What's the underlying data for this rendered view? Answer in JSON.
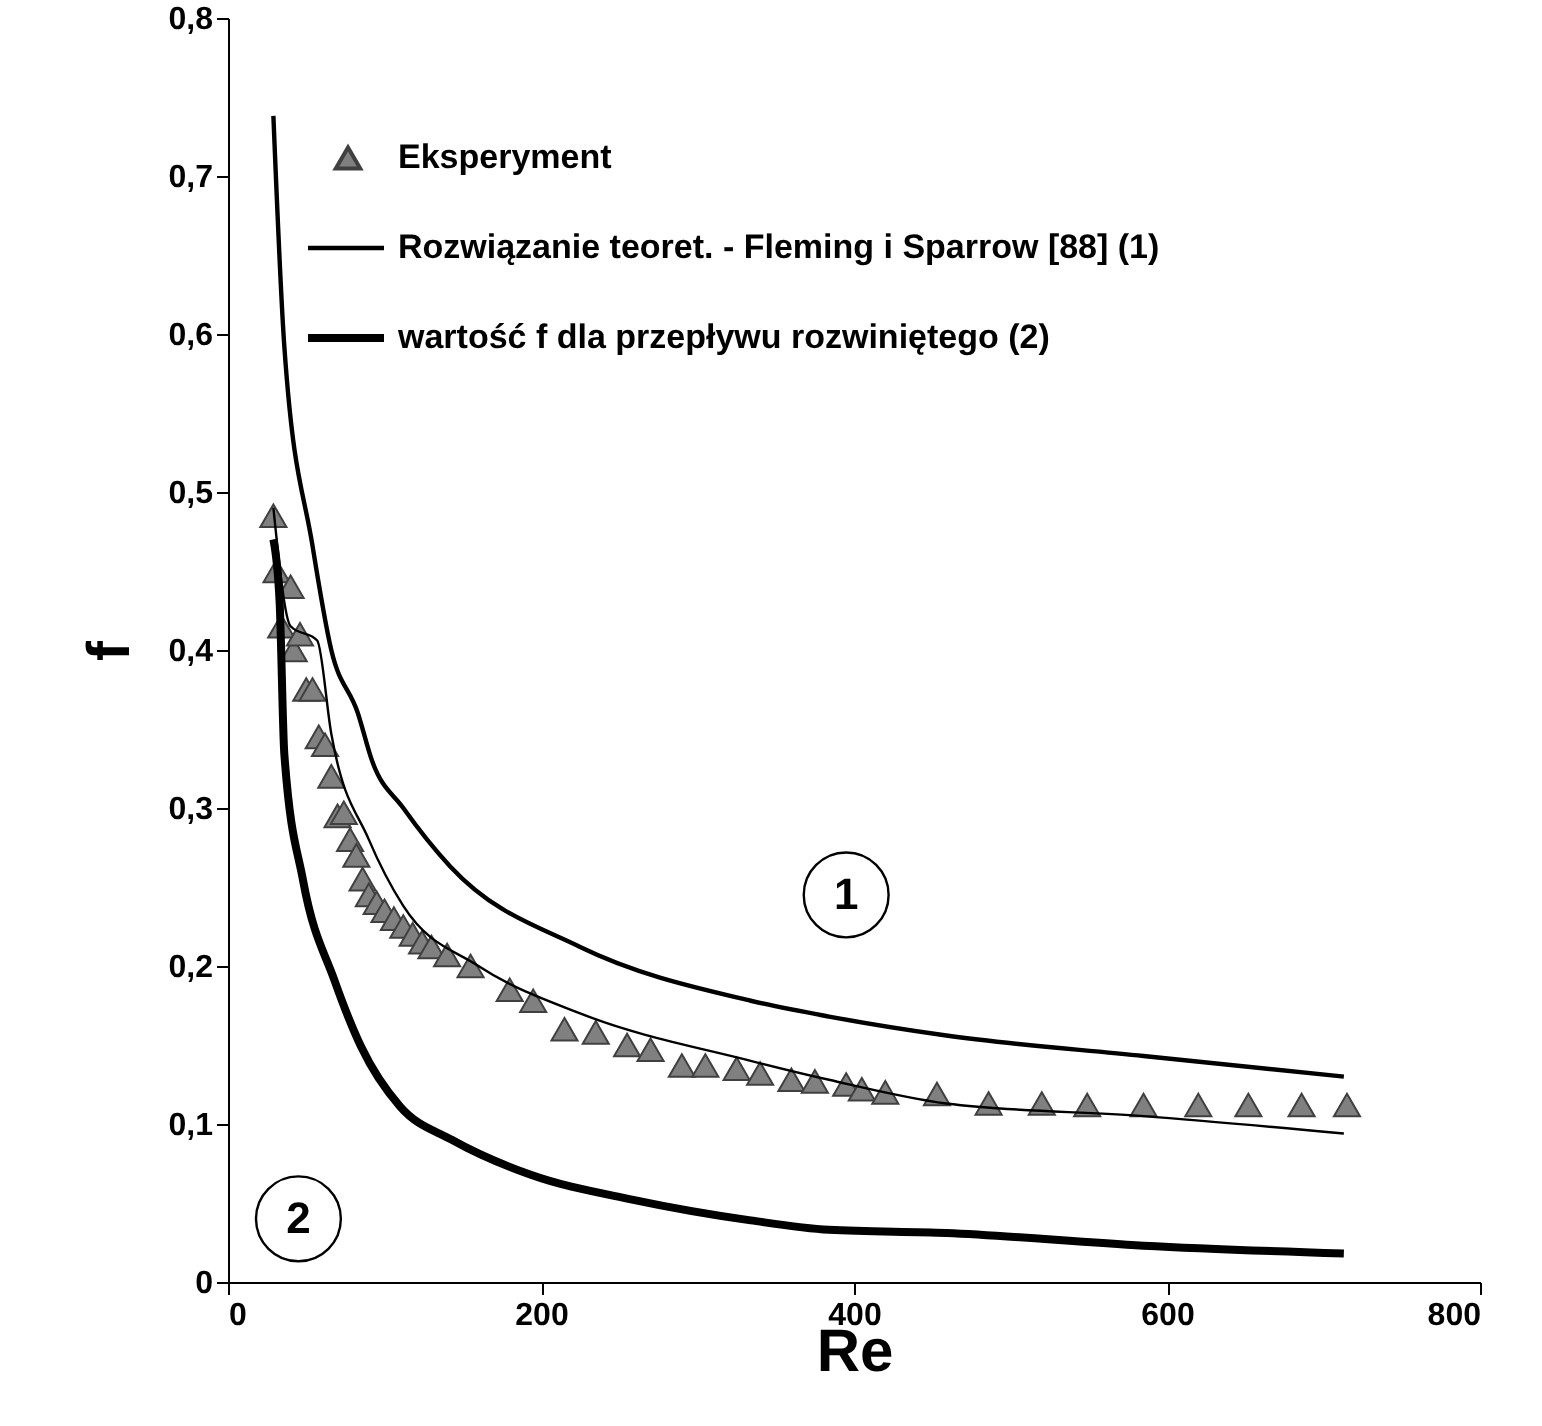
{
  "chart_data": {
    "type": "line",
    "xlabel": "Re",
    "ylabel": "f",
    "xlim": [
      0,
      800
    ],
    "xticks": [
      0,
      200,
      400,
      600,
      800
    ],
    "ylim": [
      0,
      0.8
    ],
    "yticks": [
      0,
      {
        "value": 0.1,
        "label": "0,1"
      },
      {
        "value": 0.2,
        "label": "0,2"
      },
      {
        "value": 0.3,
        "label": "0,3"
      },
      {
        "value": 0.4,
        "label": "0,4"
      },
      {
        "value": 0.5,
        "label": "0,5"
      },
      {
        "value": 0.6,
        "label": "0,6"
      },
      {
        "value": 0.7,
        "label": "0,7"
      },
      {
        "value": 0.8,
        "label": "0,8"
      }
    ],
    "grid": false,
    "legend": "top left",
    "annotations": [
      {
        "text": "1",
        "x": 395,
        "y": 0.245
      },
      {
        "text": "2",
        "x": 45,
        "y": 0.04
      }
    ],
    "series": [
      {
        "name": "Eksperyment",
        "type": "scatter",
        "marker": "triangle",
        "color": "#808080",
        "x": [
          29,
          31,
          34,
          40,
          42,
          46,
          50,
          54,
          58,
          62,
          66,
          70,
          74,
          78,
          82,
          86,
          90,
          95,
          100,
          106,
          112,
          118,
          124,
          130,
          140,
          155,
          180,
          195,
          215,
          235,
          255,
          270,
          290,
          305,
          325,
          340,
          360,
          375,
          395,
          405,
          420,
          453,
          486,
          520,
          549,
          585,
          620,
          652,
          686,
          715
        ],
        "values": [
          0.485,
          0.45,
          0.415,
          0.44,
          0.4,
          0.41,
          0.375,
          0.375,
          0.345,
          0.34,
          0.32,
          0.295,
          0.297,
          0.28,
          0.27,
          0.255,
          0.245,
          0.24,
          0.235,
          0.23,
          0.225,
          0.22,
          0.215,
          0.212,
          0.207,
          0.2,
          0.185,
          0.178,
          0.16,
          0.158,
          0.15,
          0.147,
          0.137,
          0.137,
          0.135,
          0.132,
          0.128,
          0.127,
          0.125,
          0.122,
          0.12,
          0.119,
          0.113,
          0.113,
          0.112,
          0.112,
          0.112,
          0.112,
          0.112,
          0.112
        ]
      },
      {
        "name": "Rozwiązanie teoret. - Fleming i Sparrow [88] (1)",
        "color": "#000000",
        "x": [
          29,
          36,
          54,
          66,
          83,
          92,
          112,
          142,
          225,
          334,
          384,
          459,
          585,
          713
        ],
        "values": [
          0.738,
          0.592,
          0.466,
          0.4,
          0.36,
          0.33,
          0.3,
          0.263,
          0.212,
          0.178,
          0.168,
          0.156,
          0.143,
          0.13
        ]
      },
      {
        "color": "#000000",
        "x": [
          29,
          40,
          57,
          66,
          90,
          112,
          160,
          225,
          334,
          384,
          459,
          585,
          713
        ],
        "values": [
          0.49,
          0.415,
          0.406,
          0.347,
          0.28,
          0.238,
          0.2,
          0.17,
          0.14,
          0.128,
          0.113,
          0.105,
          0.094
        ]
      },
      {
        "name": "wartość f dla  przepływu rozwiniętego (2)",
        "color": "#000000",
        "x": [
          29,
          33,
          36,
          48,
          68,
          85,
          110,
          143,
          193,
          259,
          334,
          384,
          459,
          585,
          713
        ],
        "values": [
          0.47,
          0.43,
          0.334,
          0.254,
          0.191,
          0.149,
          0.111,
          0.09,
          0.068,
          0.052,
          0.039,
          0.033,
          0.031,
          0.023,
          0.018
        ]
      }
    ]
  }
}
